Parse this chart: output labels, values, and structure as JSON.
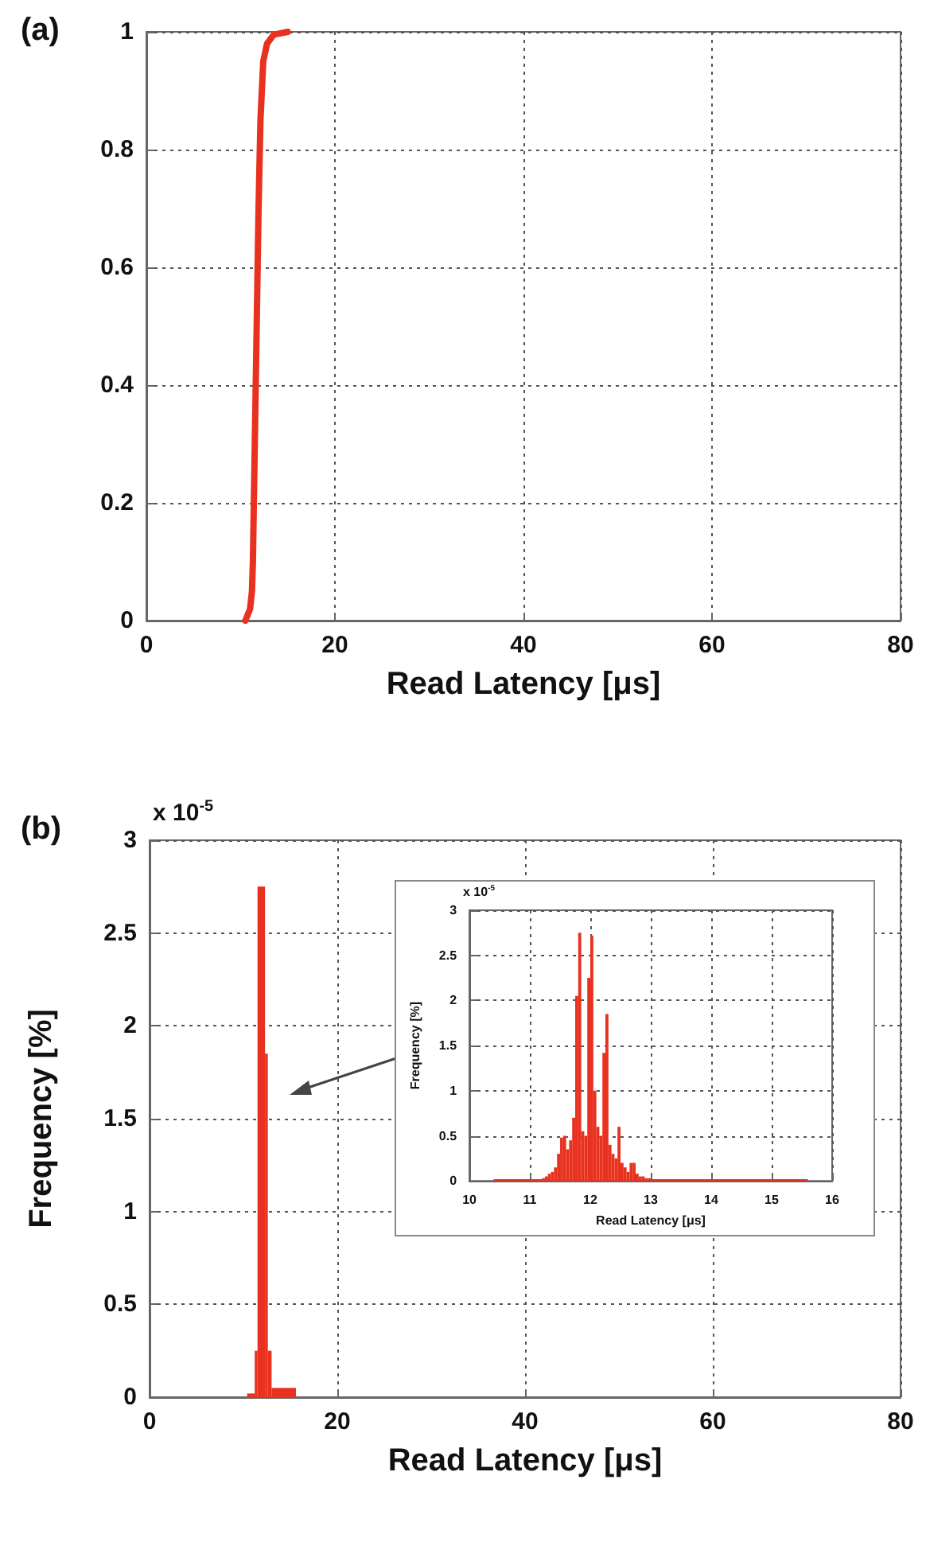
{
  "chart_data": [
    {
      "type": "line",
      "title": "(a)",
      "xlabel": "Read Latency [μs]",
      "color": "#e8311f",
      "marker": "none",
      "line_style": "solid",
      "grid": true,
      "x": [
        10.5,
        11.0,
        11.2,
        11.3,
        11.5,
        11.7,
        11.9,
        12.1,
        12.4,
        12.8,
        13.5,
        15.0
      ],
      "values": [
        0,
        0.02,
        0.05,
        0.1,
        0.3,
        0.5,
        0.7,
        0.85,
        0.95,
        0.98,
        0.995,
        1
      ],
      "xlim": [
        0,
        80
      ],
      "xticks": [
        0,
        20,
        40,
        60,
        80
      ],
      "ylim": [
        0,
        1
      ],
      "yticks": [
        0,
        0.2,
        0.4,
        0.6,
        0.8,
        1
      ]
    },
    {
      "type": "histogram",
      "title": "(b)",
      "xlabel": "Read Latency [μs]",
      "ylabel": "Frequency [%]",
      "annotations": [
        "x 10$^{-5}$"
      ],
      "color": "#e8311f",
      "grid": true,
      "bins": [
        10.4,
        11.2,
        11.5,
        12.3,
        12.6,
        13.0,
        15.6
      ],
      "values": [
        0.02,
        0.25,
        2.75,
        1.85,
        0.25,
        0.05
      ],
      "xlim": [
        0,
        80
      ],
      "xticks": [
        0,
        20,
        40,
        60,
        80
      ],
      "ylim": [
        0,
        3
      ],
      "yticks": [
        0,
        0.5,
        1,
        1.5,
        2,
        2.5,
        3
      ]
    },
    {
      "type": "histogram",
      "xlabel": "Read Latency [μs]",
      "ylabel": "Frequency [%]",
      "annotations": [
        "x 10$^{-5}$"
      ],
      "color": "#e8311f",
      "grid": true,
      "bins": [
        10.4,
        11.2,
        11.25,
        11.3,
        11.35,
        11.4,
        11.45,
        11.5,
        11.55,
        11.6,
        11.65,
        11.7,
        11.75,
        11.8,
        11.85,
        11.9,
        11.95,
        12.0,
        12.05,
        12.1,
        12.15,
        12.2,
        12.25,
        12.3,
        12.35,
        12.4,
        12.45,
        12.5,
        12.55,
        12.6,
        12.65,
        12.7,
        12.75,
        12.8,
        12.85,
        12.9,
        12.95,
        13.0,
        15.6
      ],
      "values": [
        0.02,
        0.03,
        0.05,
        0.08,
        0.1,
        0.15,
        0.3,
        0.48,
        0.5,
        0.35,
        0.45,
        0.7,
        2.05,
        2.75,
        0.55,
        0.5,
        2.25,
        2.72,
        1.0,
        0.6,
        0.5,
        1.42,
        1.85,
        0.4,
        0.3,
        0.25,
        0.6,
        0.2,
        0.15,
        0.1,
        0.2,
        0.2,
        0.08,
        0.05,
        0.05,
        0.03,
        0.03,
        0.02
      ],
      "xlim": [
        10,
        16
      ],
      "xticks": [
        10,
        11,
        12,
        13,
        14,
        15,
        16
      ],
      "ylim": [
        0,
        3
      ],
      "yticks": [
        0,
        0.5,
        1,
        1.5,
        2,
        2.5,
        3
      ]
    }
  ]
}
